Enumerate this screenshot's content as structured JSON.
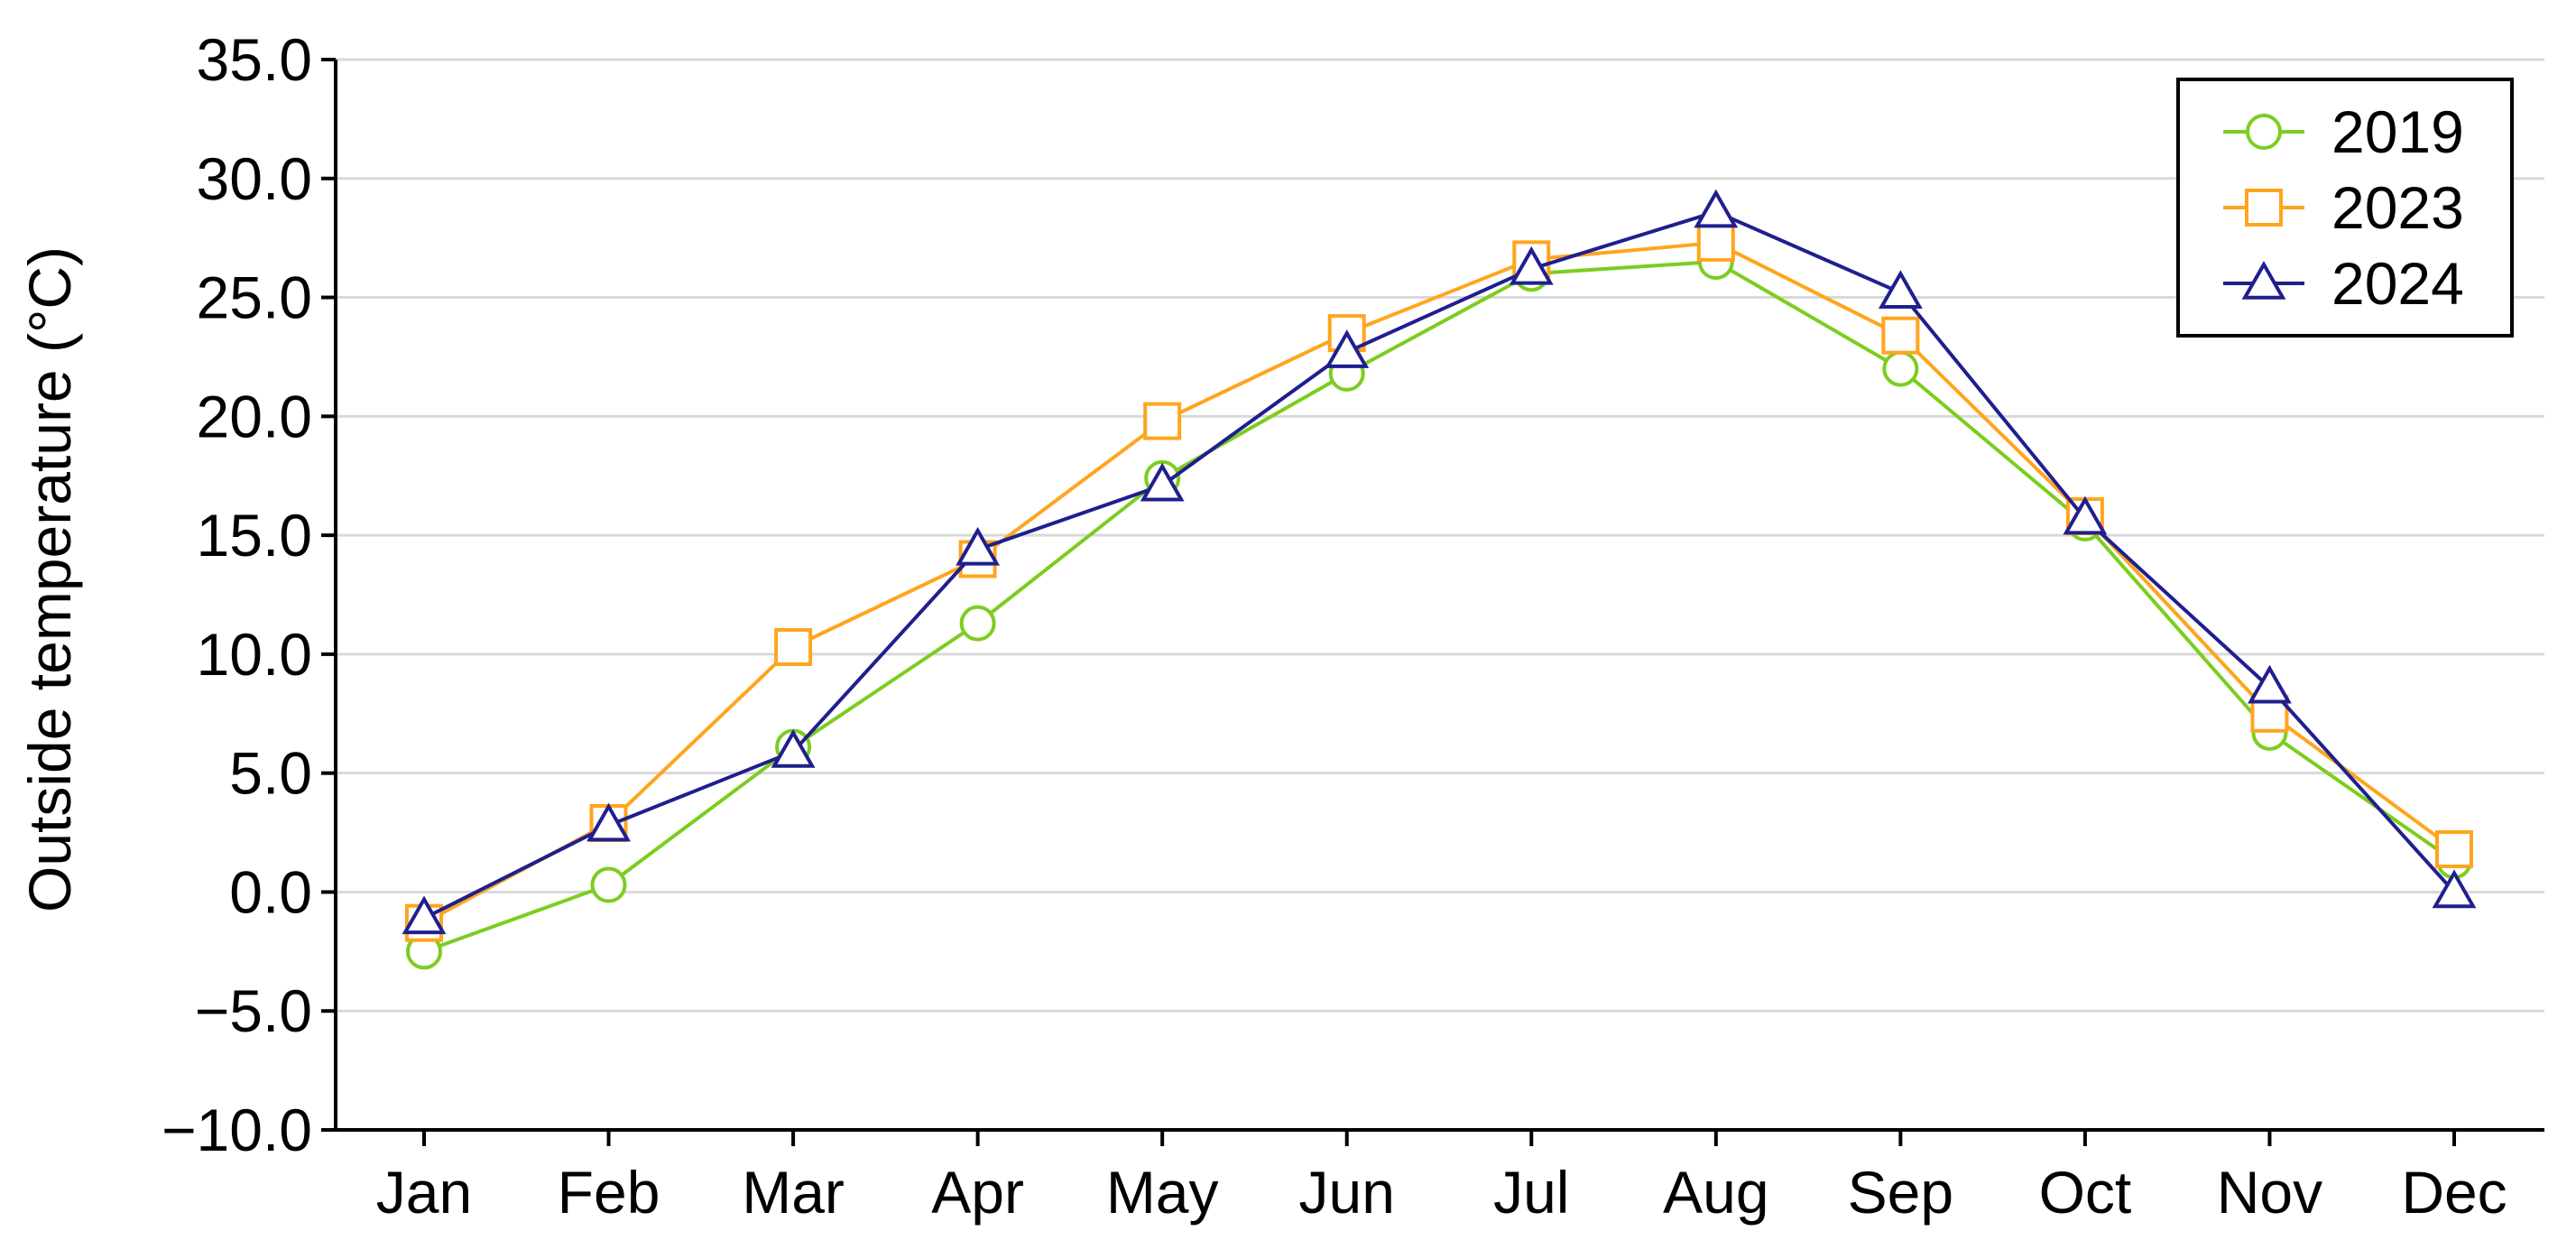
{
  "chart_data": {
    "type": "line",
    "categories": [
      "Jan",
      "Feb",
      "Mar",
      "Apr",
      "May",
      "Jun",
      "Jul",
      "Aug",
      "Sep",
      "Oct",
      "Nov",
      "Dec"
    ],
    "ylabel": "Outside temperature (°C)",
    "ylim": [
      -10,
      35
    ],
    "yticks": [
      -10,
      -5,
      0,
      5,
      10,
      15,
      20,
      25,
      30,
      35
    ],
    "ytick_labels": [
      "−10.0",
      "−5.0",
      "0.0",
      "5.0",
      "10.0",
      "15.0",
      "20.0",
      "25.0",
      "30.0",
      "35.0"
    ],
    "grid": "horizontal",
    "legend_position": "top-right",
    "series": [
      {
        "name": "2019",
        "marker": "circle",
        "color": "#7ccd1f",
        "values": [
          -2.5,
          0.3,
          6.1,
          11.3,
          17.4,
          21.8,
          26.0,
          26.5,
          22.0,
          15.5,
          6.7,
          1.3
        ]
      },
      {
        "name": "2023",
        "marker": "square",
        "color": "#ffa51d",
        "values": [
          -1.3,
          2.9,
          10.3,
          14.0,
          19.8,
          23.5,
          26.6,
          27.3,
          23.4,
          15.8,
          7.5,
          1.8
        ]
      },
      {
        "name": "2024",
        "marker": "triangle",
        "color": "#1f1f8f",
        "values": [
          -1.1,
          2.8,
          5.9,
          14.4,
          17.1,
          22.7,
          26.2,
          28.6,
          25.2,
          15.7,
          8.6,
          0.0
        ]
      }
    ]
  }
}
